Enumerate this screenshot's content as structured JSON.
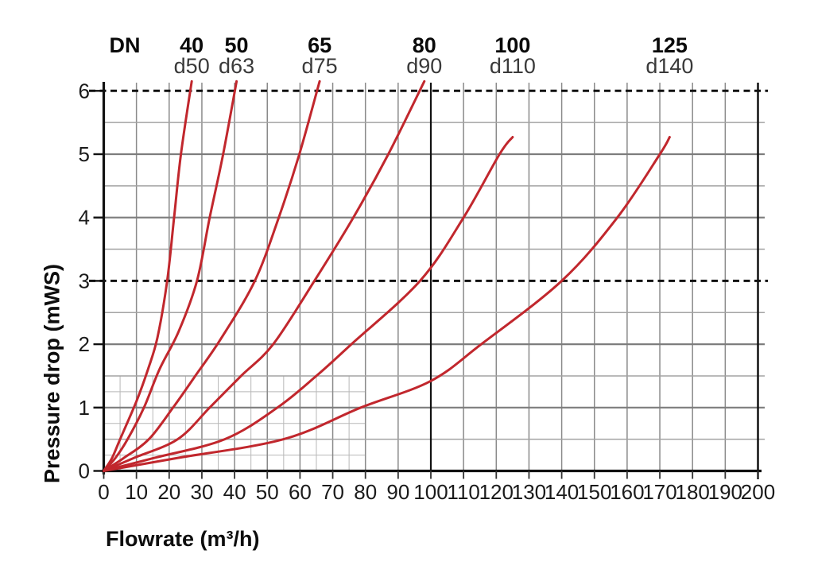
{
  "chart_data": {
    "type": "line",
    "title": "",
    "dn_header": "DN",
    "xlabel": "Flowrate (m³/h)",
    "ylabel": "Pressure drop (mWS)",
    "xlim": [
      0,
      200
    ],
    "ylim": [
      0,
      6
    ],
    "x_ticks": [
      0,
      10,
      20,
      30,
      40,
      50,
      60,
      70,
      80,
      90,
      100,
      110,
      120,
      130,
      140,
      150,
      160,
      170,
      180,
      190,
      200
    ],
    "y_ticks": [
      0,
      1,
      2,
      3,
      4,
      5,
      6
    ],
    "dashed_y_lines": [
      3,
      6
    ],
    "dark_x_line": 100,
    "grid": {
      "x_step": 10,
      "y_step": 0.5,
      "fine_region": {
        "x_min": 0,
        "x_max": 80,
        "y_min": 0,
        "y_max": 1.5,
        "x_step": 5,
        "y_step": 0.25
      }
    },
    "series": [
      {
        "dn": "40",
        "d": "d50",
        "points": [
          [
            0,
            0
          ],
          [
            2.5,
            0.2
          ],
          [
            5,
            0.5
          ],
          [
            10,
            1.1
          ],
          [
            13.5,
            1.6
          ],
          [
            16.4,
            2.1
          ],
          [
            19.4,
            3
          ],
          [
            21.5,
            4
          ],
          [
            23.6,
            5
          ],
          [
            26.9,
            6.15
          ]
        ]
      },
      {
        "dn": "50",
        "d": "d63",
        "points": [
          [
            0,
            0
          ],
          [
            3.5,
            0.2
          ],
          [
            7.3,
            0.5
          ],
          [
            12.3,
            1
          ],
          [
            17,
            1.6
          ],
          [
            22.9,
            2.2
          ],
          [
            28.5,
            3
          ],
          [
            32.4,
            4
          ],
          [
            36.5,
            5
          ],
          [
            40.6,
            6.15
          ]
        ]
      },
      {
        "dn": "65",
        "d": "d75",
        "points": [
          [
            0,
            0
          ],
          [
            6,
            0.2
          ],
          [
            13.8,
            0.5
          ],
          [
            21.2,
            1
          ],
          [
            28,
            1.5
          ],
          [
            36,
            2.1
          ],
          [
            46.2,
            3
          ],
          [
            53.5,
            4
          ],
          [
            59.8,
            5
          ],
          [
            66,
            6.15
          ]
        ]
      },
      {
        "dn": "80",
        "d": "d90",
        "points": [
          [
            0,
            0
          ],
          [
            9,
            0.2
          ],
          [
            22.6,
            0.5
          ],
          [
            32.4,
            1
          ],
          [
            42,
            1.5
          ],
          [
            51.8,
            2
          ],
          [
            64.4,
            3
          ],
          [
            76.3,
            4
          ],
          [
            87,
            5
          ],
          [
            98,
            6.15
          ]
        ]
      },
      {
        "dn": "100",
        "d": "d110",
        "points": [
          [
            0,
            0
          ],
          [
            15,
            0.2
          ],
          [
            37,
            0.5
          ],
          [
            53.1,
            1
          ],
          [
            65,
            1.5
          ],
          [
            75.7,
            2
          ],
          [
            96.7,
            3
          ],
          [
            110,
            4
          ],
          [
            121,
            5
          ],
          [
            125,
            5.27
          ]
        ]
      },
      {
        "dn": "125",
        "d": "d140",
        "points": [
          [
            0,
            0
          ],
          [
            22,
            0.2
          ],
          [
            55,
            0.5
          ],
          [
            78.6,
            1
          ],
          [
            100,
            1.42
          ],
          [
            115.4,
            2
          ],
          [
            140,
            3
          ],
          [
            157,
            4
          ],
          [
            170,
            5
          ],
          [
            173,
            5.27
          ]
        ]
      }
    ],
    "legend_position": "top-inline",
    "colors": {
      "curve": "#c1272d",
      "axis": "#111111",
      "grid_minor": "#a3a3a3",
      "grid_major": "#7d7d7d",
      "grid_vertical": "#8a8a8a",
      "grid_fine": "#b8b8b8",
      "tick_label": "#1a1a1a",
      "header_bold": "#0a0a0a",
      "header_sub": "#3a3a3a"
    }
  }
}
